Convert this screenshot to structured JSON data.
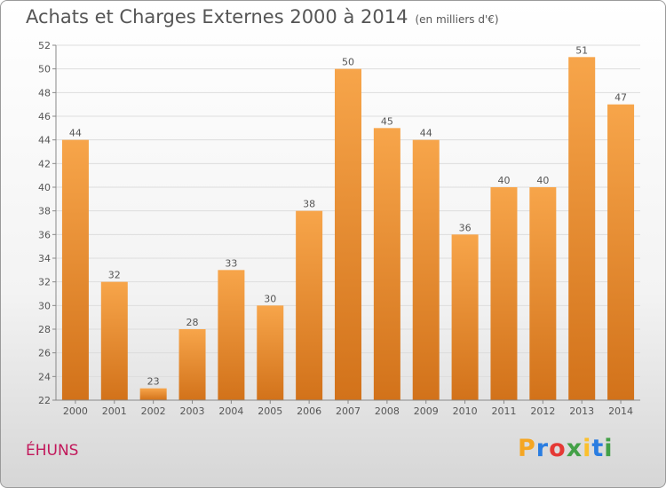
{
  "title": "Achats et Charges Externes 2000 à 2014",
  "subtitle": "(en milliers d'€)",
  "commune": "ÉHUNS",
  "logo": {
    "letters": [
      "P",
      "r",
      "o",
      "x",
      "i",
      "t",
      "i"
    ],
    "colors": [
      "#f5a623",
      "#2a7de1",
      "#e53935",
      "#43a047",
      "#fbc02d",
      "#2a7de1",
      "#43a047"
    ]
  },
  "colors": {
    "bar_top": "#f7a54a",
    "bar_bottom": "#d2721a",
    "commune": "#c2185b"
  },
  "chart_data": {
    "type": "bar",
    "title": "Achats et Charges Externes 2000 à 2014",
    "subtitle": "(en milliers d'€)",
    "categories": [
      "2000",
      "2001",
      "2002",
      "2003",
      "2004",
      "2005",
      "2006",
      "2007",
      "2008",
      "2009",
      "2010",
      "2011",
      "2012",
      "2013",
      "2014"
    ],
    "values": [
      44,
      32,
      23,
      28,
      33,
      30,
      38,
      50,
      45,
      44,
      36,
      40,
      40,
      51,
      47
    ],
    "ylim": [
      22,
      52
    ],
    "yticks": [
      22,
      24,
      26,
      28,
      30,
      32,
      34,
      36,
      38,
      40,
      42,
      44,
      46,
      48,
      50,
      52
    ],
    "grid": true,
    "xlabel": "",
    "ylabel": ""
  }
}
